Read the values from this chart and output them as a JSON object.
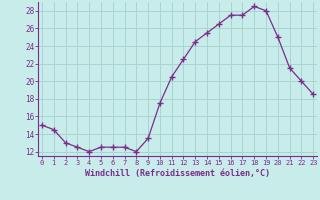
{
  "x": [
    0,
    1,
    2,
    3,
    4,
    5,
    6,
    7,
    8,
    9,
    10,
    11,
    12,
    13,
    14,
    15,
    16,
    17,
    18,
    19,
    20,
    21,
    22,
    23
  ],
  "y": [
    15.0,
    14.5,
    13.0,
    12.5,
    12.0,
    12.5,
    12.5,
    12.5,
    12.0,
    13.5,
    17.5,
    20.5,
    22.5,
    24.5,
    25.5,
    26.5,
    27.5,
    27.5,
    28.5,
    28.0,
    25.0,
    21.5,
    20.0,
    18.5
  ],
  "line_color": "#7b2d8b",
  "marker": "+",
  "bg_color": "#c8ecea",
  "grid_color": "#aad4d2",
  "xlabel": "Windchill (Refroidissement éolien,°C)",
  "xlabel_color": "#7b2d8b",
  "tick_color": "#7b2d8b",
  "spine_color": "#7b2d8b",
  "ylim": [
    11.5,
    29.0
  ],
  "yticks": [
    12,
    14,
    16,
    18,
    20,
    22,
    24,
    26,
    28
  ],
  "xticks": [
    0,
    1,
    2,
    3,
    4,
    5,
    6,
    7,
    8,
    9,
    10,
    11,
    12,
    13,
    14,
    15,
    16,
    17,
    18,
    19,
    20,
    21,
    22,
    23
  ],
  "xlim": [
    -0.3,
    23.3
  ]
}
